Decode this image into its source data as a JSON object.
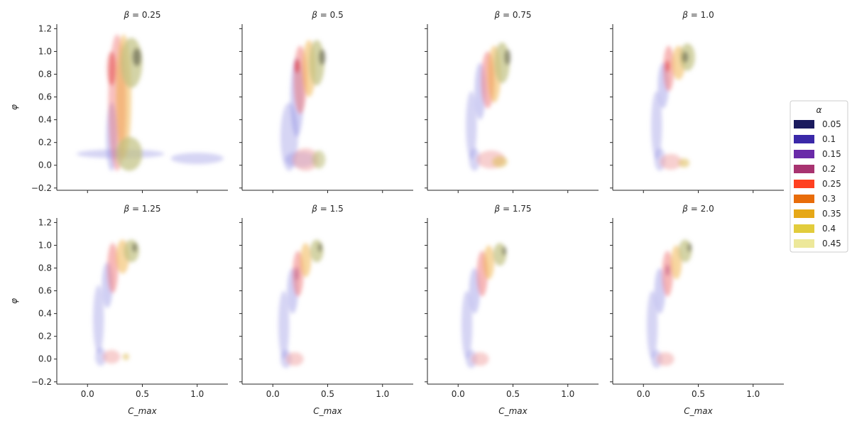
{
  "chart_data": {
    "type": "kde-density-facet-grid",
    "facet_variable": "β",
    "hue_variable": "α",
    "xlabel": "C_max",
    "ylabel": "φ",
    "xlim": [
      -0.28,
      1.28
    ],
    "ylim": [
      -0.22,
      1.24
    ],
    "xticks": [
      0.0,
      0.5,
      1.0
    ],
    "xtick_labels": [
      "0.0",
      "0.5",
      "1.0"
    ],
    "yticks": [
      -0.2,
      0.0,
      0.2,
      0.4,
      0.6,
      0.8,
      1.0,
      1.2
    ],
    "ytick_labels": [
      "−0.2",
      "0.0",
      "0.2",
      "0.4",
      "0.6",
      "0.8",
      "1.0",
      "1.2"
    ],
    "legend": {
      "title": "α",
      "placement": "right",
      "entries": [
        {
          "label": "0.05",
          "color": "#1a1a5e"
        },
        {
          "label": "0.1",
          "color": "#3a28a8"
        },
        {
          "label": "0.15",
          "color": "#6a2aa8"
        },
        {
          "label": "0.2",
          "color": "#a83370"
        },
        {
          "label": "0.25",
          "color": "#ff4020"
        },
        {
          "label": "0.3",
          "color": "#e86c0a"
        },
        {
          "label": "0.35",
          "color": "#e6a817"
        },
        {
          "label": "0.4",
          "color": "#e2cc3c"
        },
        {
          "label": "0.45",
          "color": "#ede89a"
        }
      ]
    },
    "panels": [
      {
        "beta_label": "0.25",
        "regions": [
          {
            "cx": 0.3,
            "cy": 0.1,
            "rx": 0.4,
            "ry": 0.04,
            "color": "#8a86e0",
            "opacity": 0.35
          },
          {
            "cx": 1.0,
            "cy": 0.06,
            "rx": 0.24,
            "ry": 0.05,
            "color": "#8a86e0",
            "opacity": 0.35
          },
          {
            "cx": 0.22,
            "cy": 0.25,
            "rx": 0.05,
            "ry": 0.3,
            "color": "#8a86e0",
            "opacity": 0.4
          },
          {
            "cx": 0.27,
            "cy": 0.55,
            "rx": 0.08,
            "ry": 0.6,
            "color": "#f07070",
            "opacity": 0.45
          },
          {
            "cx": 0.22,
            "cy": 0.85,
            "rx": 0.04,
            "ry": 0.15,
            "color": "#e03030",
            "opacity": 0.45
          },
          {
            "cx": 0.33,
            "cy": 0.6,
            "rx": 0.07,
            "ry": 0.55,
            "color": "#f0b040",
            "opacity": 0.5
          },
          {
            "cx": 0.4,
            "cy": 0.9,
            "rx": 0.1,
            "ry": 0.22,
            "color": "#c0c080",
            "opacity": 0.7
          },
          {
            "cx": 0.45,
            "cy": 0.95,
            "rx": 0.04,
            "ry": 0.08,
            "color": "#505040",
            "opacity": 0.55
          },
          {
            "cx": 0.38,
            "cy": 0.1,
            "rx": 0.12,
            "ry": 0.15,
            "color": "#c0c080",
            "opacity": 0.7
          }
        ]
      },
      {
        "beta_label": "0.5",
        "regions": [
          {
            "cx": 0.15,
            "cy": 0.25,
            "rx": 0.08,
            "ry": 0.3,
            "color": "#8a86e0",
            "opacity": 0.35
          },
          {
            "cx": 0.25,
            "cy": 0.05,
            "rx": 0.14,
            "ry": 0.07,
            "color": "#8a86e0",
            "opacity": 0.35
          },
          {
            "cx": 0.22,
            "cy": 0.6,
            "rx": 0.06,
            "ry": 0.35,
            "color": "#8a86e0",
            "opacity": 0.4
          },
          {
            "cx": 0.25,
            "cy": 0.75,
            "rx": 0.06,
            "ry": 0.3,
            "color": "#f07070",
            "opacity": 0.5
          },
          {
            "cx": 0.22,
            "cy": 0.87,
            "rx": 0.025,
            "ry": 0.06,
            "color": "#e03030",
            "opacity": 0.55
          },
          {
            "cx": 0.33,
            "cy": 0.85,
            "rx": 0.06,
            "ry": 0.25,
            "color": "#f0b040",
            "opacity": 0.5
          },
          {
            "cx": 0.4,
            "cy": 0.9,
            "rx": 0.07,
            "ry": 0.2,
            "color": "#c0c080",
            "opacity": 0.7
          },
          {
            "cx": 0.45,
            "cy": 0.95,
            "rx": 0.03,
            "ry": 0.07,
            "color": "#505040",
            "opacity": 0.55
          },
          {
            "cx": 0.3,
            "cy": 0.05,
            "rx": 0.12,
            "ry": 0.1,
            "color": "#f0a0a0",
            "opacity": 0.5
          },
          {
            "cx": 0.42,
            "cy": 0.05,
            "rx": 0.06,
            "ry": 0.08,
            "color": "#c0c080",
            "opacity": 0.6
          }
        ]
      },
      {
        "beta_label": "0.75",
        "regions": [
          {
            "cx": 0.12,
            "cy": 0.35,
            "rx": 0.05,
            "ry": 0.3,
            "color": "#8a86e0",
            "opacity": 0.35
          },
          {
            "cx": 0.15,
            "cy": 0.05,
            "rx": 0.05,
            "ry": 0.1,
            "color": "#8a86e0",
            "opacity": 0.35
          },
          {
            "cx": 0.2,
            "cy": 0.65,
            "rx": 0.05,
            "ry": 0.25,
            "color": "#8a86e0",
            "opacity": 0.4
          },
          {
            "cx": 0.27,
            "cy": 0.75,
            "rx": 0.06,
            "ry": 0.25,
            "color": "#f07070",
            "opacity": 0.5
          },
          {
            "cx": 0.33,
            "cy": 0.8,
            "rx": 0.06,
            "ry": 0.25,
            "color": "#f0b040",
            "opacity": 0.5
          },
          {
            "cx": 0.4,
            "cy": 0.9,
            "rx": 0.07,
            "ry": 0.18,
            "color": "#c0c080",
            "opacity": 0.7
          },
          {
            "cx": 0.45,
            "cy": 0.95,
            "rx": 0.03,
            "ry": 0.07,
            "color": "#505040",
            "opacity": 0.5
          },
          {
            "cx": 0.3,
            "cy": 0.05,
            "rx": 0.13,
            "ry": 0.08,
            "color": "#f0a0a0",
            "opacity": 0.5
          },
          {
            "cx": 0.38,
            "cy": 0.03,
            "rx": 0.07,
            "ry": 0.05,
            "color": "#e0c060",
            "opacity": 0.6
          }
        ]
      },
      {
        "beta_label": "1.0",
        "regions": [
          {
            "cx": 0.12,
            "cy": 0.35,
            "rx": 0.05,
            "ry": 0.3,
            "color": "#8a86e0",
            "opacity": 0.35
          },
          {
            "cx": 0.15,
            "cy": 0.05,
            "rx": 0.05,
            "ry": 0.1,
            "color": "#8a86e0",
            "opacity": 0.35
          },
          {
            "cx": 0.18,
            "cy": 0.7,
            "rx": 0.05,
            "ry": 0.2,
            "color": "#8a86e0",
            "opacity": 0.4
          },
          {
            "cx": 0.23,
            "cy": 0.85,
            "rx": 0.05,
            "ry": 0.2,
            "color": "#f07070",
            "opacity": 0.5
          },
          {
            "cx": 0.22,
            "cy": 0.87,
            "rx": 0.02,
            "ry": 0.05,
            "color": "#e03030",
            "opacity": 0.55
          },
          {
            "cx": 0.32,
            "cy": 0.9,
            "rx": 0.06,
            "ry": 0.15,
            "color": "#f0b040",
            "opacity": 0.5
          },
          {
            "cx": 0.4,
            "cy": 0.95,
            "rx": 0.07,
            "ry": 0.12,
            "color": "#c0c080",
            "opacity": 0.7
          },
          {
            "cx": 0.38,
            "cy": 0.95,
            "rx": 0.03,
            "ry": 0.05,
            "color": "#505040",
            "opacity": 0.5
          },
          {
            "cx": 0.25,
            "cy": 0.03,
            "rx": 0.1,
            "ry": 0.07,
            "color": "#f0a0a0",
            "opacity": 0.5
          },
          {
            "cx": 0.37,
            "cy": 0.02,
            "rx": 0.05,
            "ry": 0.04,
            "color": "#e0c060",
            "opacity": 0.6
          }
        ]
      },
      {
        "beta_label": "1.25",
        "regions": [
          {
            "cx": 0.1,
            "cy": 0.35,
            "rx": 0.05,
            "ry": 0.3,
            "color": "#8a86e0",
            "opacity": 0.35
          },
          {
            "cx": 0.12,
            "cy": 0.02,
            "rx": 0.05,
            "ry": 0.08,
            "color": "#8a86e0",
            "opacity": 0.35
          },
          {
            "cx": 0.18,
            "cy": 0.65,
            "rx": 0.05,
            "ry": 0.2,
            "color": "#8a86e0",
            "opacity": 0.4
          },
          {
            "cx": 0.23,
            "cy": 0.8,
            "rx": 0.05,
            "ry": 0.22,
            "color": "#f07070",
            "opacity": 0.5
          },
          {
            "cx": 0.32,
            "cy": 0.9,
            "rx": 0.06,
            "ry": 0.15,
            "color": "#f0b040",
            "opacity": 0.5
          },
          {
            "cx": 0.4,
            "cy": 0.95,
            "rx": 0.07,
            "ry": 0.1,
            "color": "#c0c080",
            "opacity": 0.7
          },
          {
            "cx": 0.43,
            "cy": 0.98,
            "rx": 0.025,
            "ry": 0.04,
            "color": "#505040",
            "opacity": 0.5
          },
          {
            "cx": 0.22,
            "cy": 0.02,
            "rx": 0.08,
            "ry": 0.06,
            "color": "#f0a0a0",
            "opacity": 0.5
          },
          {
            "cx": 0.35,
            "cy": 0.02,
            "rx": 0.03,
            "ry": 0.03,
            "color": "#e0c060",
            "opacity": 0.6
          }
        ]
      },
      {
        "beta_label": "1.5",
        "regions": [
          {
            "cx": 0.1,
            "cy": 0.3,
            "rx": 0.05,
            "ry": 0.3,
            "color": "#8a86e0",
            "opacity": 0.35
          },
          {
            "cx": 0.12,
            "cy": 0.0,
            "rx": 0.05,
            "ry": 0.08,
            "color": "#8a86e0",
            "opacity": 0.35
          },
          {
            "cx": 0.18,
            "cy": 0.6,
            "rx": 0.05,
            "ry": 0.2,
            "color": "#8a86e0",
            "opacity": 0.4
          },
          {
            "cx": 0.23,
            "cy": 0.75,
            "rx": 0.05,
            "ry": 0.2,
            "color": "#f07070",
            "opacity": 0.5
          },
          {
            "cx": 0.22,
            "cy": 0.75,
            "rx": 0.02,
            "ry": 0.06,
            "color": "#a83370",
            "opacity": 0.4
          },
          {
            "cx": 0.3,
            "cy": 0.87,
            "rx": 0.05,
            "ry": 0.15,
            "color": "#f0b040",
            "opacity": 0.5
          },
          {
            "cx": 0.4,
            "cy": 0.95,
            "rx": 0.06,
            "ry": 0.1,
            "color": "#c0c080",
            "opacity": 0.7
          },
          {
            "cx": 0.43,
            "cy": 0.98,
            "rx": 0.02,
            "ry": 0.04,
            "color": "#505040",
            "opacity": 0.5
          },
          {
            "cx": 0.2,
            "cy": 0.0,
            "rx": 0.08,
            "ry": 0.06,
            "color": "#f0a0a0",
            "opacity": 0.5
          }
        ]
      },
      {
        "beta_label": "1.75",
        "regions": [
          {
            "cx": 0.08,
            "cy": 0.3,
            "rx": 0.05,
            "ry": 0.3,
            "color": "#8a86e0",
            "opacity": 0.35
          },
          {
            "cx": 0.12,
            "cy": 0.0,
            "rx": 0.05,
            "ry": 0.08,
            "color": "#8a86e0",
            "opacity": 0.35
          },
          {
            "cx": 0.15,
            "cy": 0.6,
            "rx": 0.05,
            "ry": 0.2,
            "color": "#8a86e0",
            "opacity": 0.4
          },
          {
            "cx": 0.22,
            "cy": 0.75,
            "rx": 0.05,
            "ry": 0.2,
            "color": "#f07070",
            "opacity": 0.5
          },
          {
            "cx": 0.28,
            "cy": 0.85,
            "rx": 0.05,
            "ry": 0.15,
            "color": "#f0b040",
            "opacity": 0.5
          },
          {
            "cx": 0.38,
            "cy": 0.92,
            "rx": 0.06,
            "ry": 0.1,
            "color": "#c0c080",
            "opacity": 0.7
          },
          {
            "cx": 0.42,
            "cy": 0.95,
            "rx": 0.02,
            "ry": 0.04,
            "color": "#505040",
            "opacity": 0.5
          },
          {
            "cx": 0.2,
            "cy": 0.0,
            "rx": 0.08,
            "ry": 0.06,
            "color": "#f0a0a0",
            "opacity": 0.5
          }
        ]
      },
      {
        "beta_label": "2.0",
        "regions": [
          {
            "cx": 0.08,
            "cy": 0.3,
            "rx": 0.05,
            "ry": 0.3,
            "color": "#8a86e0",
            "opacity": 0.35
          },
          {
            "cx": 0.12,
            "cy": 0.0,
            "rx": 0.05,
            "ry": 0.08,
            "color": "#8a86e0",
            "opacity": 0.35
          },
          {
            "cx": 0.15,
            "cy": 0.6,
            "rx": 0.05,
            "ry": 0.2,
            "color": "#8a86e0",
            "opacity": 0.4
          },
          {
            "cx": 0.22,
            "cy": 0.75,
            "rx": 0.05,
            "ry": 0.2,
            "color": "#f07070",
            "opacity": 0.5
          },
          {
            "cx": 0.22,
            "cy": 0.78,
            "rx": 0.02,
            "ry": 0.05,
            "color": "#a83370",
            "opacity": 0.45
          },
          {
            "cx": 0.3,
            "cy": 0.85,
            "rx": 0.05,
            "ry": 0.15,
            "color": "#f0b040",
            "opacity": 0.5
          },
          {
            "cx": 0.38,
            "cy": 0.95,
            "rx": 0.06,
            "ry": 0.1,
            "color": "#c0c080",
            "opacity": 0.7
          },
          {
            "cx": 0.42,
            "cy": 0.98,
            "rx": 0.02,
            "ry": 0.04,
            "color": "#505040",
            "opacity": 0.5
          },
          {
            "cx": 0.2,
            "cy": 0.0,
            "rx": 0.08,
            "ry": 0.06,
            "color": "#f0a0a0",
            "opacity": 0.5
          }
        ]
      }
    ]
  }
}
